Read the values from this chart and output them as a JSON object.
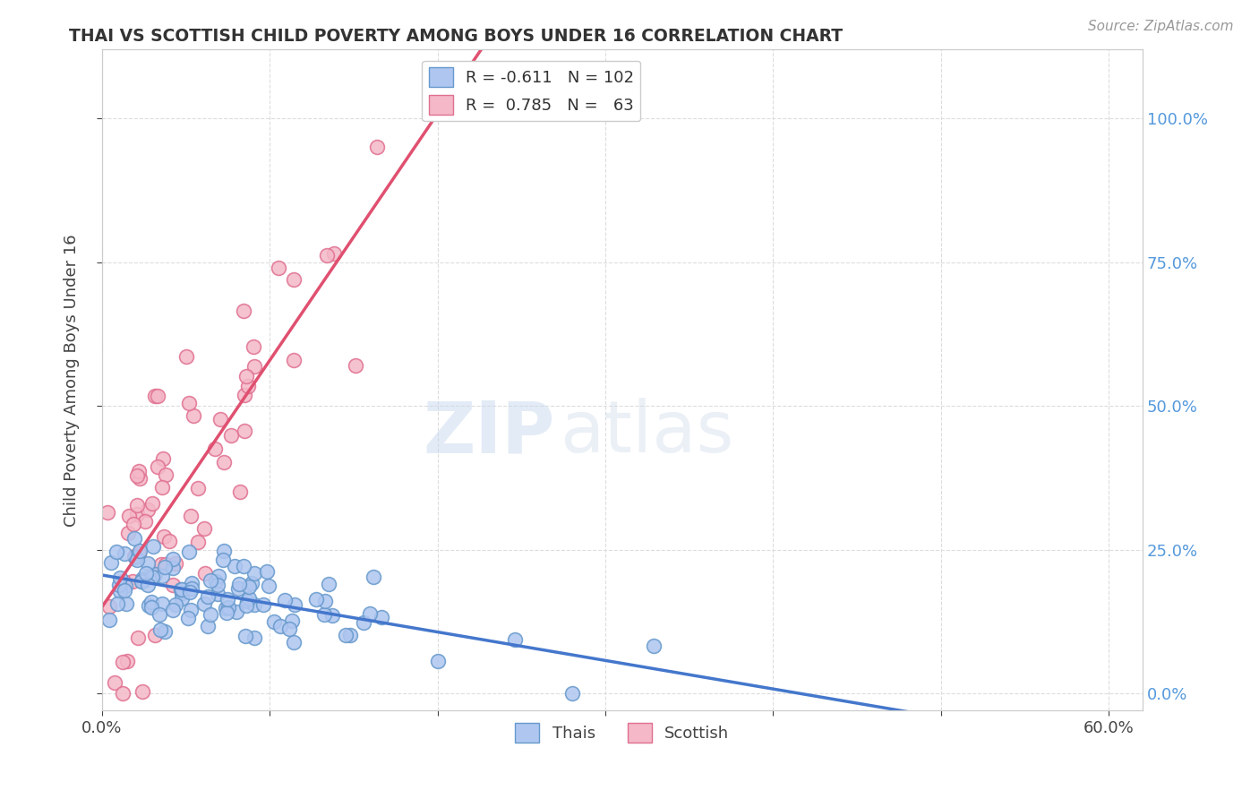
{
  "title": "THAI VS SCOTTISH CHILD POVERTY AMONG BOYS UNDER 16 CORRELATION CHART",
  "source": "Source: ZipAtlas.com",
  "ylabel": "Child Poverty Among Boys Under 16",
  "xlim": [
    0.0,
    0.62
  ],
  "ylim": [
    -0.03,
    1.12
  ],
  "y_ticks": [
    0.0,
    0.25,
    0.5,
    0.75,
    1.0
  ],
  "y_tick_labels": [
    "0.0%",
    "25.0%",
    "50.0%",
    "75.0%",
    "100.0%"
  ],
  "series_thai": {
    "color": "#aec6f0",
    "edge_color": "#6699cc",
    "line_color": "#4477cc",
    "R": -0.611,
    "N": 102
  },
  "series_scottish": {
    "color": "#f4b8c8",
    "edge_color": "#e07090",
    "line_color": "#e05070",
    "R": 0.785,
    "N": 63
  },
  "watermark_zip": "ZIP",
  "watermark_atlas": "atlas",
  "background_color": "#ffffff",
  "grid_color": "#dddddd"
}
